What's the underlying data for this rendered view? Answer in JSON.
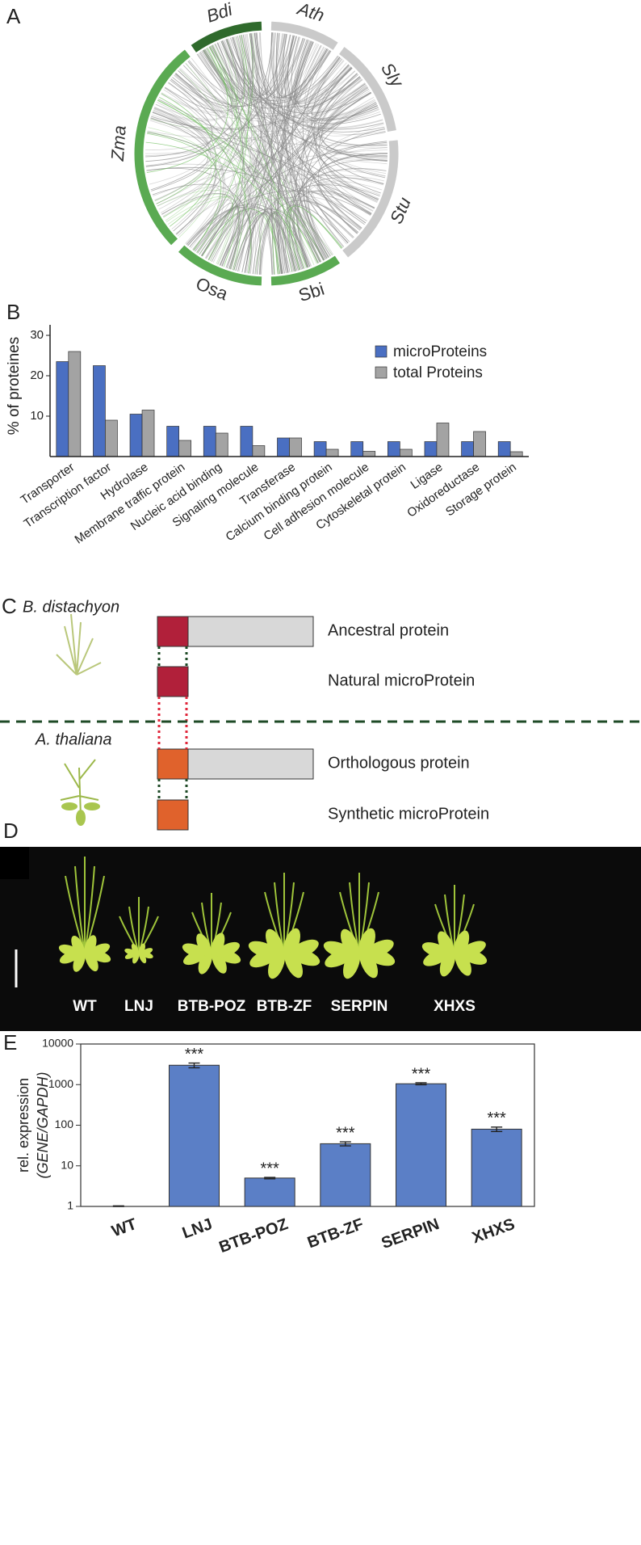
{
  "panel_labels": [
    "A",
    "B",
    "C",
    "D",
    "E"
  ],
  "circos": {
    "segments": [
      {
        "name": "Bdi",
        "color": "#2f6a2c"
      },
      {
        "name": "Ath",
        "color": "#cacaca"
      },
      {
        "name": "Sly",
        "color": "#cacaca"
      },
      {
        "name": "Stu",
        "color": "#cacaca"
      },
      {
        "name": "Sbi",
        "color": "#5aaa52"
      },
      {
        "name": "Osa",
        "color": "#5aaa52"
      },
      {
        "name": "Zma",
        "color": "#5aaa52"
      }
    ]
  },
  "chart_data": [
    {
      "type": "bar",
      "y_label": "% of proteines",
      "categories": [
        "Transporter",
        "Transcription factor",
        "Hydrolase",
        "Membrane traffic protein",
        "Nucleic acid binding",
        "Signaling molecule",
        "Transferase",
        "Calcium binding protein",
        "Cell adhesion molecule",
        "Cytoskeletal protein",
        "Ligase",
        "Oxidoreductase",
        "Storage protein"
      ],
      "series": [
        {
          "name": "microProteins",
          "color": "#4a6fc2",
          "values": [
            23.5,
            22.5,
            10.5,
            7.5,
            7.5,
            7.5,
            4.6,
            3.7,
            3.7,
            3.7,
            3.7,
            3.7,
            3.7
          ]
        },
        {
          "name": "total Proteins",
          "color": "#a3a3a3",
          "values": [
            26,
            9,
            11.5,
            4,
            5.8,
            2.7,
            4.6,
            1.8,
            1.3,
            1.8,
            8.3,
            6.2,
            1.2
          ]
        }
      ],
      "ylim": [
        0,
        31
      ],
      "yticks": [
        10,
        20,
        30
      ],
      "legend": "top-right"
    },
    {
      "type": "bar",
      "y_label": [
        "rel. expression",
        "(GENE/GAPDH)"
      ],
      "categories": [
        "WT",
        "LNJ",
        "BTB-POZ",
        "BTB-ZF",
        "SERPIN",
        "XHXS"
      ],
      "values": [
        1,
        3000,
        5,
        35,
        1050,
        80
      ],
      "errors": [
        0.03,
        400,
        0.2,
        4,
        60,
        10
      ],
      "annotations": [
        null,
        "***",
        "***",
        "***",
        "***",
        "***"
      ],
      "color": "#5b7fc6",
      "log_scale": true,
      "ylim": [
        1,
        10000
      ],
      "yticks": [
        1,
        10,
        100,
        1000,
        10000
      ]
    }
  ],
  "diagram": {
    "species": [
      "B. distachyon",
      "A. thaliana"
    ],
    "labels": [
      "Ancestral protein",
      "Natural microProtein",
      "Orthologous protein",
      "Synthetic microProtein"
    ]
  },
  "photo": {
    "labels": [
      "WT",
      "LNJ",
      "BTB-POZ",
      "BTB-ZF",
      "SERPIN",
      "XHXS"
    ]
  }
}
